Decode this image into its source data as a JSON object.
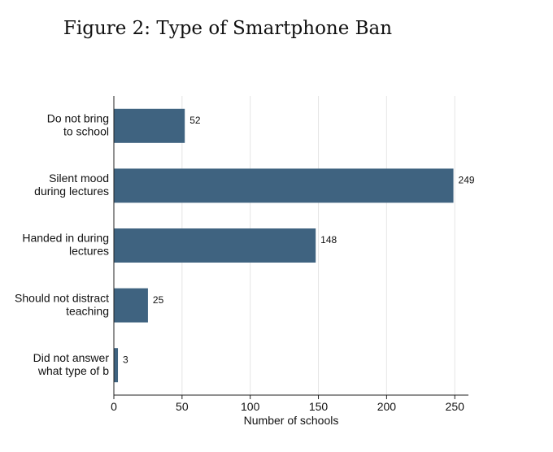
{
  "figure_title": "Figure 2:  Type of Smartphone Ban",
  "chart_data": {
    "type": "bar",
    "orientation": "horizontal",
    "categories": [
      [
        "Do not bring",
        "to school"
      ],
      [
        "Silent mood",
        "during lectures"
      ],
      [
        "Handed in during",
        "lectures"
      ],
      [
        "Should not distract",
        "teaching"
      ],
      [
        "Did not answer",
        "what type of b"
      ]
    ],
    "values": [
      52,
      249,
      148,
      25,
      3
    ],
    "xlabel": "Number of schools",
    "ylabel": "",
    "xlim": [
      0,
      260
    ],
    "xticks": [
      0,
      50,
      100,
      150,
      200,
      250
    ],
    "grid": true,
    "bar_color": "#3f6380",
    "data_labels": true
  }
}
